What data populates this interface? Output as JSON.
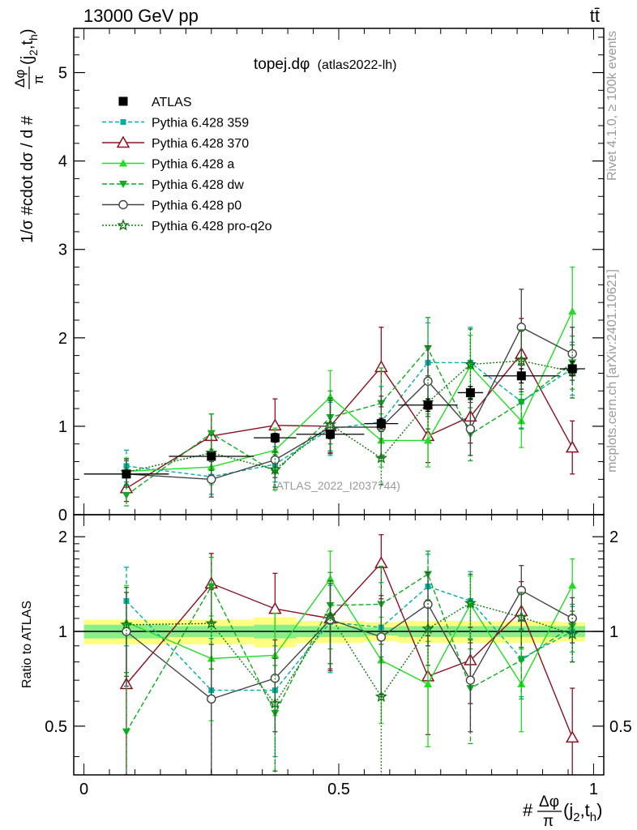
{
  "header": {
    "left": "13000 GeV pp",
    "right": "tt̄"
  },
  "side_labels": {
    "rivet": "Rivet 4.1.0, ≥ 100k events",
    "mcplots": "mcplots.cern.ch [arXiv:2401.10621]"
  },
  "chart_data": [
    {
      "type": "scatter",
      "title": "topej.dφ (atlas2022-lh)",
      "title_main": "topej.d",
      "title_phi": "φ",
      "title_sub": "(atlas2022-lh)",
      "watermark": "(ATLAS_2022_I2037744)",
      "ylabel": "1/σ #cdot dσ / d #Δφ/π(j₂,tₕ)",
      "ylabel_main": "1/σ #cdot dσ / d #",
      "ylabel_num": "Δφ",
      "ylabel_den": "π",
      "ylabel_args": "(j",
      "ylabel_sub1": "2",
      "ylabel_comma": ",t",
      "ylabel_sub2": "h",
      "ylabel_close": ")",
      "xlim": [
        -0.02,
        1.02
      ],
      "ylim": [
        0,
        5.5
      ],
      "yticks": [
        "0",
        "1",
        "2",
        "3",
        "4",
        "5"
      ],
      "x": [
        0.0833,
        0.25,
        0.375,
        0.4833,
        0.5833,
        0.675,
        0.7583,
        0.8583,
        0.9583
      ],
      "x_err": [
        0.0833,
        0.0833,
        0.0417,
        0.0667,
        0.0333,
        0.0583,
        0.025,
        0.075,
        0.025
      ],
      "legend": [
        "ATLAS",
        "Pythia 6.428 359",
        "Pythia 6.428 370",
        "Pythia 6.428 a",
        "Pythia 6.428 dw",
        "Pythia 6.428 p0",
        "Pythia 6.428 pro-q2o"
      ],
      "series": [
        {
          "name": "ATLAS",
          "color": "#000000",
          "marker": "square",
          "dash": "",
          "values": [
            0.46,
            0.66,
            0.87,
            0.91,
            1.03,
            1.24,
            1.38,
            1.57,
            1.65
          ],
          "errors": [
            0.03,
            0.04,
            0.05,
            0.05,
            0.06,
            0.07,
            0.07,
            0.08,
            0.08
          ]
        },
        {
          "name": "Pythia 6.428 359",
          "color": "#00b0a0",
          "marker": "smallsquare",
          "dash": "5,3",
          "values": [
            0.55,
            0.43,
            0.57,
            0.97,
            1.05,
            1.72,
            1.72,
            1.28,
            1.65
          ],
          "errors": [
            0.18,
            0.2,
            0.2,
            0.3,
            0.4,
            0.45,
            0.4,
            0.3,
            0.3
          ]
        },
        {
          "name": "Pythia 6.428 370",
          "color": "#8b1020",
          "marker": "opentriangle",
          "dash": "",
          "values": [
            0.3,
            0.89,
            1.01,
            1.0,
            1.67,
            0.89,
            1.11,
            1.82,
            0.76
          ],
          "errors": [
            0.15,
            0.25,
            0.3,
            0.3,
            0.45,
            0.3,
            0.3,
            0.4,
            0.3
          ]
        },
        {
          "name": "Pythia 6.428 a",
          "color": "#22dd22",
          "marker": "triangle",
          "dash": "",
          "values": [
            0.49,
            0.54,
            0.73,
            1.33,
            0.84,
            0.84,
            1.68,
            1.06,
            2.3
          ],
          "errors": [
            0.15,
            0.2,
            0.25,
            0.3,
            0.3,
            0.3,
            0.35,
            0.3,
            0.5
          ]
        },
        {
          "name": "Pythia 6.428 dw",
          "color": "#11aa22",
          "marker": "invtriangle",
          "dash": "6,3",
          "values": [
            0.22,
            0.92,
            0.48,
            1.1,
            1.26,
            1.88,
            0.91,
            1.27,
            1.72
          ],
          "errors": [
            0.12,
            0.22,
            0.2,
            0.3,
            0.4,
            0.35,
            0.3,
            0.3,
            0.3
          ]
        },
        {
          "name": "Pythia 6.428 p0",
          "color": "#444444",
          "marker": "opencircle",
          "dash": "",
          "values": [
            0.46,
            0.4,
            0.62,
            0.99,
            0.99,
            1.51,
            0.97,
            2.12,
            1.82
          ],
          "errors": [
            0.15,
            0.2,
            0.2,
            0.3,
            0.35,
            0.4,
            0.3,
            0.43,
            0.3
          ]
        },
        {
          "name": "Pythia 6.428 pro-q2o",
          "color": "#117711",
          "marker": "star",
          "dash": "2,2",
          "values": [
            0.48,
            0.7,
            0.51,
            1.02,
            0.64,
            1.27,
            1.7,
            1.74,
            1.62
          ],
          "errors": [
            0.15,
            0.2,
            0.2,
            0.3,
            0.3,
            0.3,
            0.4,
            0.35,
            0.3
          ]
        }
      ]
    },
    {
      "type": "scatter",
      "ylabel": "Ratio to ATLAS",
      "xlabel": "#Δφ/π(j₂,tₕ)",
      "xlabel_main": "#",
      "xlabel_num": "Δφ",
      "xlabel_den": "π",
      "xlabel_args": "(j",
      "xlabel_sub1": "2",
      "xlabel_comma": ",t",
      "xlabel_sub2": "h",
      "xlabel_close": ")",
      "xlim": [
        -0.02,
        1.02
      ],
      "ylim": [
        0.35,
        2.35
      ],
      "xticks": [
        "0",
        "0.5",
        "1"
      ],
      "yticks": [
        "0.5",
        "1",
        "2"
      ],
      "band_green": [
        0.05,
        0.04,
        0.05,
        0.04,
        0.03,
        0.04,
        0.04,
        0.04,
        0.04
      ],
      "band_yellow": [
        0.09,
        0.09,
        0.11,
        0.08,
        0.07,
        0.08,
        0.08,
        0.08,
        0.07
      ],
      "series": [
        {
          "name": "Pythia 6.428 359",
          "values": [
            1.25,
            0.65,
            0.65,
            1.07,
            1.03,
            1.39,
            1.25,
            0.82,
            1.0
          ],
          "errors": [
            0.35,
            0.3,
            0.25,
            0.33,
            0.4,
            0.37,
            0.3,
            0.2,
            0.2
          ]
        },
        {
          "name": "Pythia 6.428 370",
          "values": [
            0.68,
            1.42,
            1.18,
            1.1,
            1.65,
            0.72,
            0.81,
            1.16,
            0.46
          ],
          "errors": [
            0.33,
            0.35,
            0.35,
            0.35,
            0.38,
            0.25,
            0.22,
            0.28,
            0.2
          ]
        },
        {
          "name": "Pythia 6.428 a",
          "values": [
            1.07,
            0.82,
            0.84,
            1.47,
            0.81,
            0.68,
            1.22,
            0.68,
            1.4
          ],
          "errors": [
            0.33,
            0.3,
            0.3,
            0.33,
            0.3,
            0.25,
            0.28,
            0.2,
            0.3
          ]
        },
        {
          "name": "Pythia 6.428 dw",
          "values": [
            0.48,
            1.39,
            0.55,
            1.21,
            1.22,
            1.52,
            0.66,
            0.81,
            1.04
          ],
          "errors": [
            0.26,
            0.33,
            0.23,
            0.33,
            0.39,
            0.28,
            0.22,
            0.2,
            0.18
          ]
        },
        {
          "name": "Pythia 6.428 p0",
          "values": [
            1.0,
            0.61,
            0.71,
            1.09,
            0.96,
            1.22,
            0.7,
            1.35,
            1.1
          ],
          "errors": [
            0.33,
            0.3,
            0.23,
            0.33,
            0.34,
            0.32,
            0.22,
            0.27,
            0.18
          ]
        },
        {
          "name": "Pythia 6.428 pro-q2o",
          "values": [
            1.05,
            1.06,
            0.59,
            1.12,
            0.62,
            1.02,
            1.23,
            1.11,
            0.98
          ],
          "errors": [
            0.33,
            0.3,
            0.23,
            0.33,
            0.29,
            0.24,
            0.29,
            0.22,
            0.18
          ]
        }
      ]
    }
  ]
}
